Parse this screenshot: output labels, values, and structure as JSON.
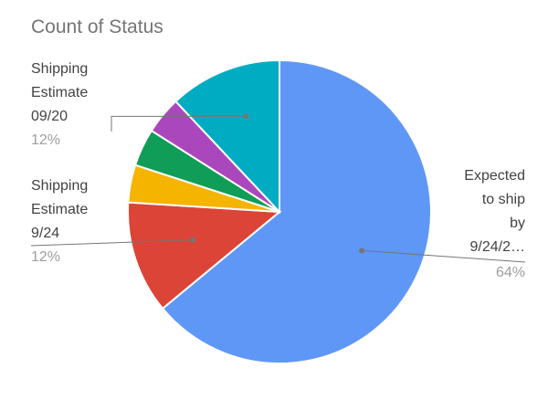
{
  "chart_data": {
    "type": "pie",
    "title": "Count of Status",
    "slices": [
      {
        "label": "Expected to ship by 9/24/2…",
        "value": 64,
        "percent_label": "64%",
        "color": "#5e97f6"
      },
      {
        "label": "Shipping Estimate 9/24",
        "value": 12,
        "percent_label": "12%",
        "color": "#db4437"
      },
      {
        "label": "",
        "value": 4,
        "color": "#f4b400"
      },
      {
        "label": "",
        "value": 4,
        "color": "#0f9d58"
      },
      {
        "label": "",
        "value": 4,
        "color": "#ab47bc"
      },
      {
        "label": "Shipping Estimate 09/20",
        "value": 12,
        "percent_label": "12%",
        "color": "#00acc1"
      }
    ],
    "legend": "none",
    "callouts": [
      {
        "slice": 0,
        "lines": [
          "Expected",
          "to ship",
          "by",
          "9/24/2…"
        ],
        "percent": "64%"
      },
      {
        "slice": 1,
        "lines": [
          "Shipping",
          "Estimate",
          "9/24"
        ],
        "percent": "12%"
      },
      {
        "slice": 5,
        "lines": [
          "Shipping",
          "Estimate",
          "09/20"
        ],
        "percent": "12%"
      }
    ]
  }
}
